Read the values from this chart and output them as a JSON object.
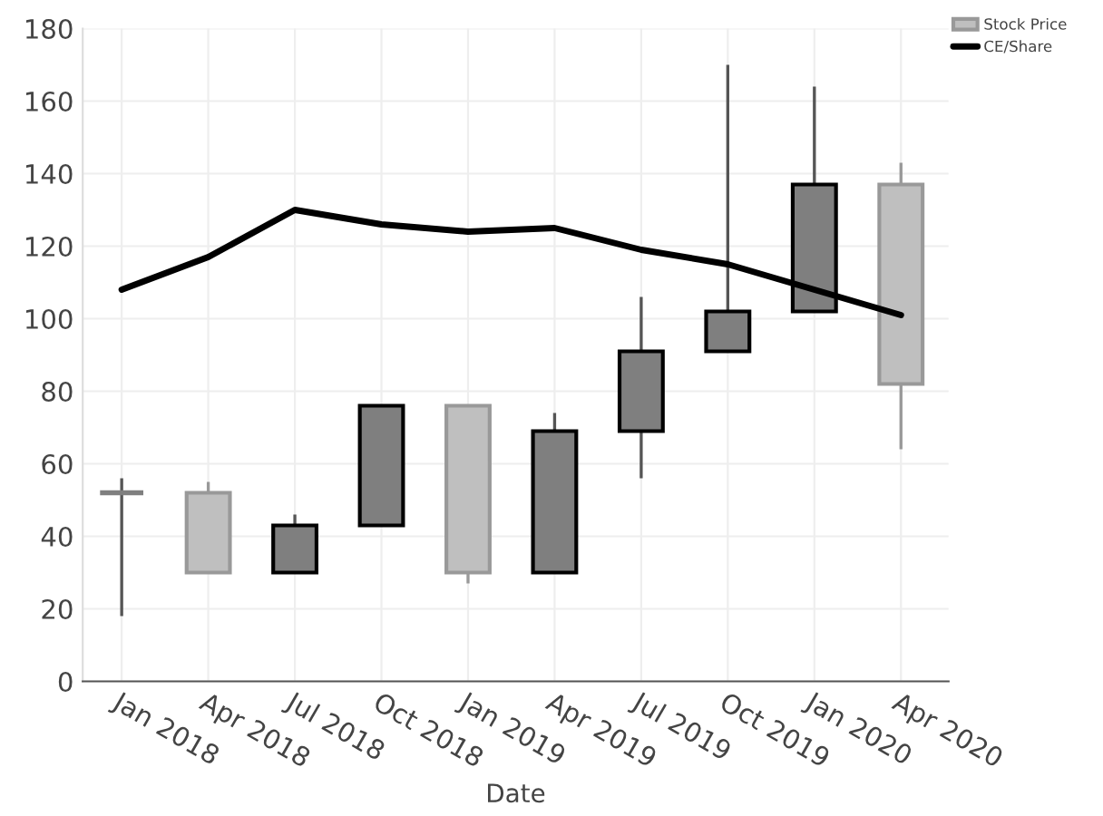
{
  "chart_data": {
    "type": "candlestick",
    "xlabel": "Date",
    "categories": [
      "Jan 2018",
      "Apr 2018",
      "Jul 2018",
      "Oct 2018",
      "Jan 2019",
      "Apr 2019",
      "Jul 2019",
      "Oct 2019",
      "Jan 2020",
      "Apr 2020"
    ],
    "series": [
      {
        "name": "Stock Price",
        "colors": [
          "#7f7f7f",
          "#bfbfbf",
          "#7f7f7f",
          "#7f7f7f",
          "#bfbfbf",
          "#7f7f7f",
          "#7f7f7f",
          "#7f7f7f",
          "#7f7f7f",
          "#bfbfbf"
        ],
        "ohlc": [
          [
            52,
            56,
            18,
            52
          ],
          [
            52,
            55,
            30,
            30
          ],
          [
            30,
            46,
            30,
            43
          ],
          [
            43,
            76,
            43,
            76
          ],
          [
            76,
            76,
            27,
            30
          ],
          [
            30,
            74,
            30,
            69
          ],
          [
            69,
            106,
            56,
            91
          ],
          [
            91,
            170,
            91,
            102
          ],
          [
            102,
            164,
            102,
            137
          ],
          [
            137,
            143,
            64,
            82
          ]
        ]
      },
      {
        "name": "CE/Share",
        "type": "line",
        "color": "#000000",
        "values": [
          108,
          117,
          130,
          126,
          124,
          125,
          119,
          115,
          108,
          101
        ]
      }
    ],
    "ylim": [
      0,
      180
    ],
    "yticks": [
      0,
      20,
      40,
      60,
      80,
      100,
      120,
      140,
      160,
      180
    ],
    "grid": true,
    "legend": "top right"
  }
}
